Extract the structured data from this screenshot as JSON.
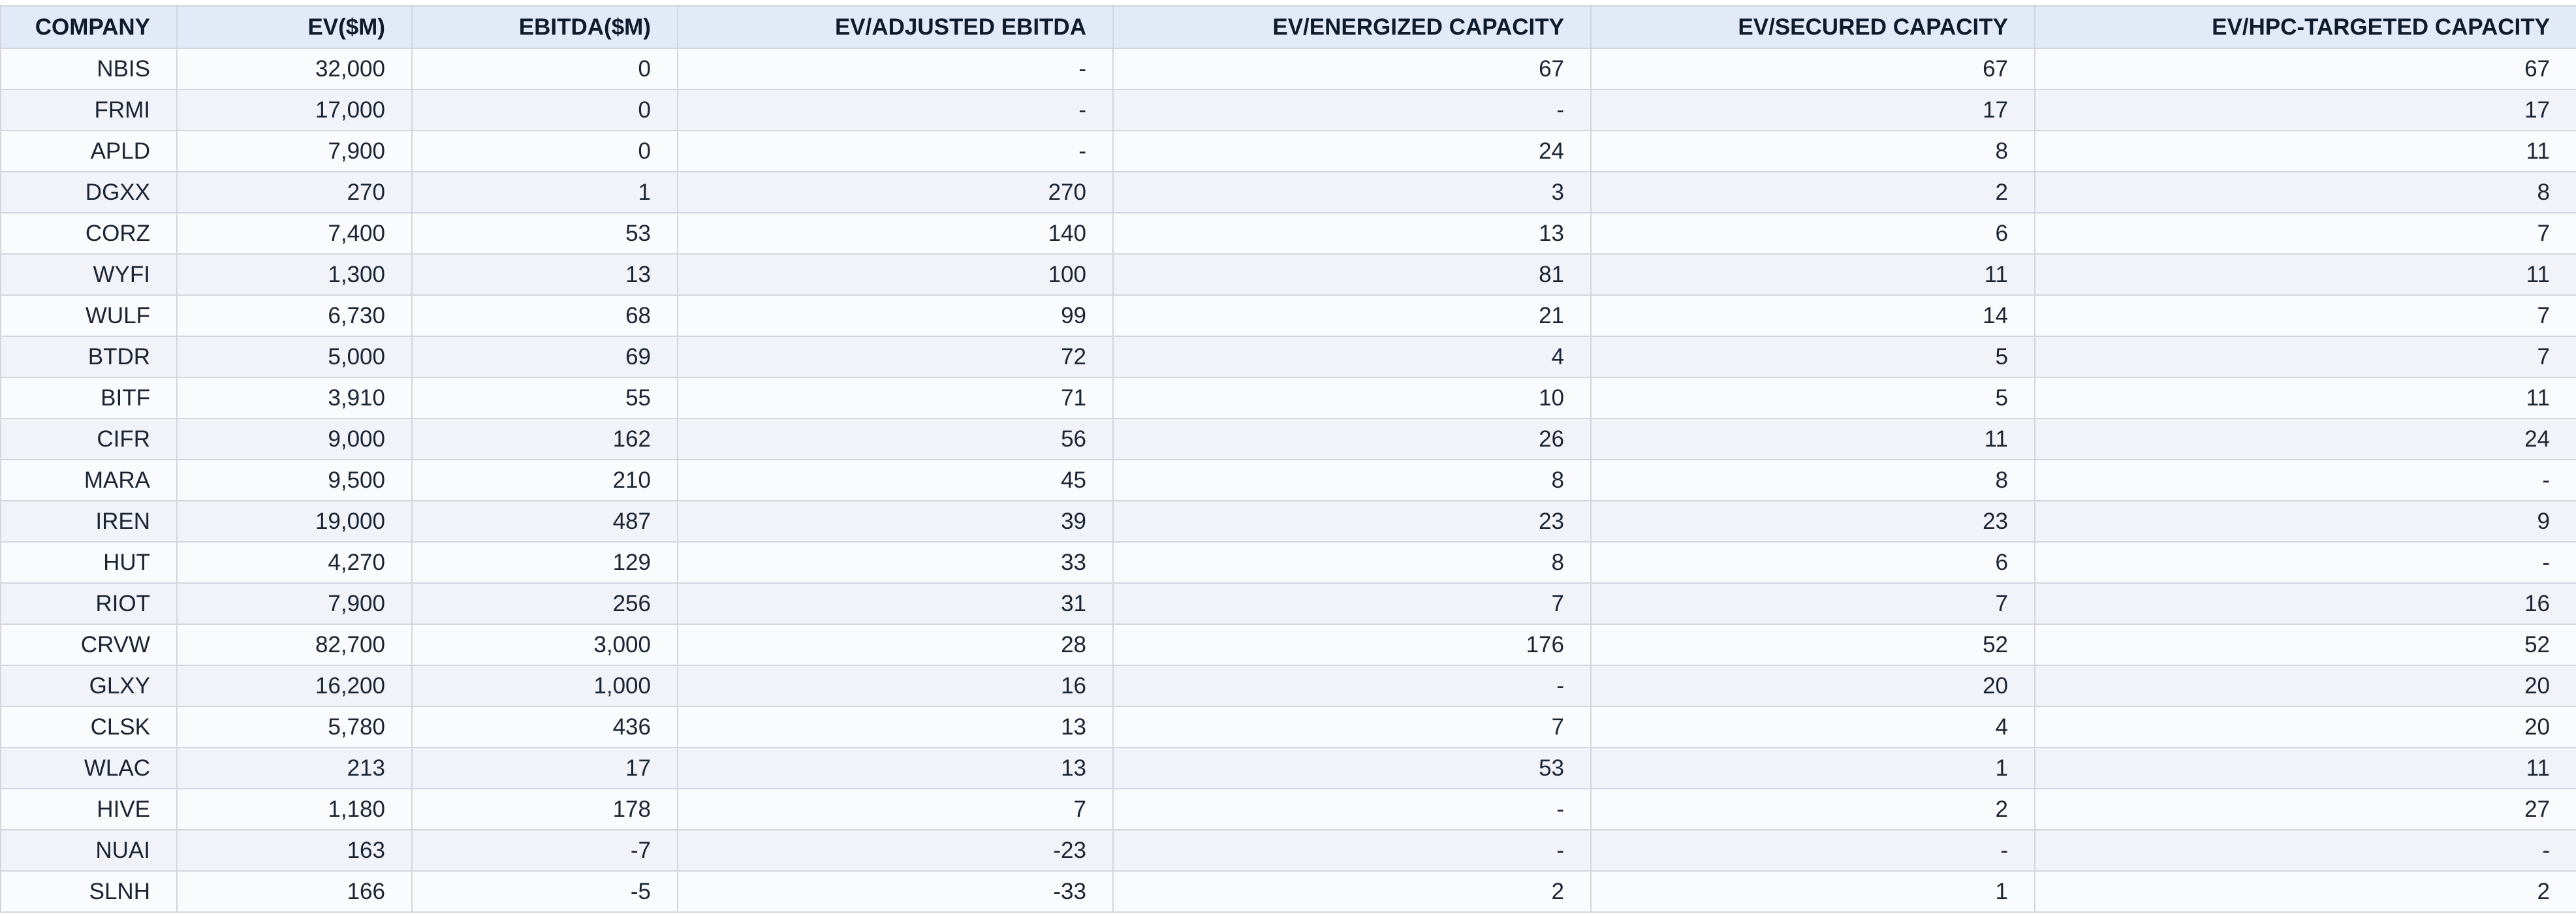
{
  "colors": {
    "header_bg": "#e1eaf6",
    "row_odd": "#fafbfd",
    "row_even": "#f1f3f8",
    "border": "#d3d6de",
    "header_text": "#0e1b2c",
    "cell_text": "#1b2433"
  },
  "table": {
    "columns": [
      {
        "label": "COMPANY"
      },
      {
        "label": "EV($M)"
      },
      {
        "label": "EBITDA($M)"
      },
      {
        "label": "EV/ADJUSTED EBITDA"
      },
      {
        "label": "EV/ENERGIZED CAPACITY"
      },
      {
        "label": "EV/SECURED CAPACITY"
      },
      {
        "label": "EV/HPC-TARGETED CAPACITY"
      }
    ],
    "rows": [
      [
        "NBIS",
        "32,000",
        "0",
        "-",
        "67",
        "67",
        "67"
      ],
      [
        "FRMI",
        "17,000",
        "0",
        "-",
        "-",
        "17",
        "17"
      ],
      [
        "APLD",
        "7,900",
        "0",
        "-",
        "24",
        "8",
        "11"
      ],
      [
        "DGXX",
        "270",
        "1",
        "270",
        "3",
        "2",
        "8"
      ],
      [
        "CORZ",
        "7,400",
        "53",
        "140",
        "13",
        "6",
        "7"
      ],
      [
        "WYFI",
        "1,300",
        "13",
        "100",
        "81",
        "11",
        "11"
      ],
      [
        "WULF",
        "6,730",
        "68",
        "99",
        "21",
        "14",
        "7"
      ],
      [
        "BTDR",
        "5,000",
        "69",
        "72",
        "4",
        "5",
        "7"
      ],
      [
        "BITF",
        "3,910",
        "55",
        "71",
        "10",
        "5",
        "11"
      ],
      [
        "CIFR",
        "9,000",
        "162",
        "56",
        "26",
        "11",
        "24"
      ],
      [
        "MARA",
        "9,500",
        "210",
        "45",
        "8",
        "8",
        "-"
      ],
      [
        "IREN",
        "19,000",
        "487",
        "39",
        "23",
        "23",
        "9"
      ],
      [
        "HUT",
        "4,270",
        "129",
        "33",
        "8",
        "6",
        "-"
      ],
      [
        "RIOT",
        "7,900",
        "256",
        "31",
        "7",
        "7",
        "16"
      ],
      [
        "CRVW",
        "82,700",
        "3,000",
        "28",
        "176",
        "52",
        "52"
      ],
      [
        "GLXY",
        "16,200",
        "1,000",
        "16",
        "-",
        "20",
        "20"
      ],
      [
        "CLSK",
        "5,780",
        "436",
        "13",
        "7",
        "4",
        "20"
      ],
      [
        "WLAC",
        "213",
        "17",
        "13",
        "53",
        "1",
        "11"
      ],
      [
        "HIVE",
        "1,180",
        "178",
        "7",
        "-",
        "2",
        "27"
      ],
      [
        "NUAI",
        "163",
        "-7",
        "-23",
        "-",
        "-",
        "-"
      ],
      [
        "SLNH",
        "166",
        "-5",
        "-33",
        "2",
        "1",
        "2"
      ]
    ]
  },
  "chart_data": {
    "type": "table",
    "title": "",
    "columns": [
      "COMPANY",
      "EV($M)",
      "EBITDA($M)",
      "EV/ADJUSTED EBITDA",
      "EV/ENERGIZED CAPACITY",
      "EV/SECURED CAPACITY",
      "EV/HPC-TARGETED CAPACITY"
    ],
    "rows": [
      [
        "NBIS",
        32000,
        0,
        null,
        67,
        67,
        67
      ],
      [
        "FRMI",
        17000,
        0,
        null,
        null,
        17,
        17
      ],
      [
        "APLD",
        7900,
        0,
        null,
        24,
        8,
        11
      ],
      [
        "DGXX",
        270,
        1,
        270,
        3,
        2,
        8
      ],
      [
        "CORZ",
        7400,
        53,
        140,
        13,
        6,
        7
      ],
      [
        "WYFI",
        1300,
        13,
        100,
        81,
        11,
        11
      ],
      [
        "WULF",
        6730,
        68,
        99,
        21,
        14,
        7
      ],
      [
        "BTDR",
        5000,
        69,
        72,
        4,
        5,
        7
      ],
      [
        "BITF",
        3910,
        55,
        71,
        10,
        5,
        11
      ],
      [
        "CIFR",
        9000,
        162,
        56,
        26,
        11,
        24
      ],
      [
        "MARA",
        9500,
        210,
        45,
        8,
        8,
        null
      ],
      [
        "IREN",
        19000,
        487,
        39,
        23,
        23,
        9
      ],
      [
        "HUT",
        4270,
        129,
        33,
        8,
        6,
        null
      ],
      [
        "RIOT",
        7900,
        256,
        31,
        7,
        7,
        16
      ],
      [
        "CRVW",
        82700,
        3000,
        28,
        176,
        52,
        52
      ],
      [
        "GLXY",
        16200,
        1000,
        16,
        null,
        20,
        20
      ],
      [
        "CLSK",
        5780,
        436,
        13,
        7,
        4,
        20
      ],
      [
        "WLAC",
        213,
        17,
        13,
        53,
        1,
        11
      ],
      [
        "HIVE",
        1180,
        178,
        7,
        null,
        2,
        27
      ],
      [
        "NUAI",
        163,
        -7,
        -23,
        null,
        null,
        null
      ],
      [
        "SLNH",
        166,
        -5,
        -33,
        2,
        1,
        2
      ]
    ],
    "missing_value_marker": "-"
  }
}
